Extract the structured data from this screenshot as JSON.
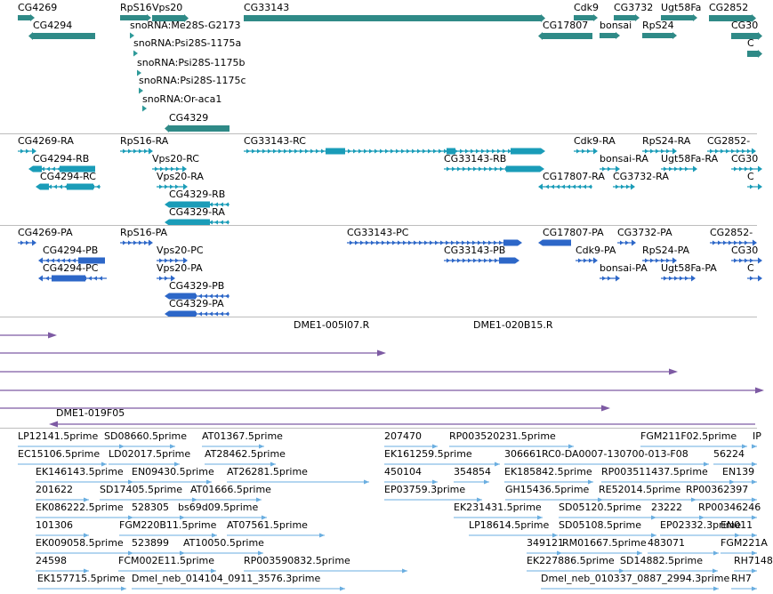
{
  "colors": {
    "gene": "#2f8a87",
    "gene_arrow": "#2e9a99",
    "mrna": "#1a9cb8",
    "transcript_alt": "#2d67c8",
    "clone": "#7d5aa3",
    "est": "#6aaee0",
    "separator": "#bdbdbd"
  },
  "tracks": {
    "genes": {
      "features": [
        {
          "label": "CG4269",
          "glyph": "arrow",
          "strand": "+"
        },
        {
          "label": "RpS16",
          "glyph": "arrow",
          "strand": "+"
        },
        {
          "label": "Vps20",
          "glyph": "bar",
          "strand": "+"
        },
        {
          "label": "CG33143",
          "glyph": "bar",
          "strand": "+"
        },
        {
          "label": "Cdk9",
          "glyph": "arrow",
          "strand": "+"
        },
        {
          "label": "CG3732",
          "glyph": "arrow",
          "strand": "+"
        },
        {
          "label": "Ugt58Fa",
          "glyph": "arrow",
          "strand": "+"
        },
        {
          "label": "CG2852",
          "glyph": "bar",
          "strand": "+"
        },
        {
          "label": "CG4294",
          "glyph": "bar",
          "strand": "-"
        },
        {
          "label": "snoRNA:Me28S-G2173",
          "glyph": "tick",
          "strand": "+"
        },
        {
          "label": "CG17807",
          "glyph": "bar",
          "strand": "-"
        },
        {
          "label": "bonsai",
          "glyph": "arrow",
          "strand": "+"
        },
        {
          "label": "RpS24",
          "glyph": "arrow",
          "strand": "+"
        },
        {
          "label": "CG30",
          "glyph": "bar",
          "strand": "+"
        },
        {
          "label": "snoRNA:Psi28S-1175a",
          "glyph": "tick",
          "strand": "+"
        },
        {
          "label": "snoRNA:Psi28S-1175b",
          "glyph": "tick",
          "strand": "+"
        },
        {
          "label": "snoRNA:Psi28S-1175c",
          "glyph": "tick",
          "strand": "+"
        },
        {
          "label": "snoRNA:Or-aca1",
          "glyph": "tick",
          "strand": "+"
        },
        {
          "label": "CG4329",
          "glyph": "bar",
          "strand": "-"
        },
        {
          "label": "C",
          "glyph": "bar",
          "strand": "+"
        }
      ]
    },
    "mrna_set1": {
      "features": [
        {
          "label": "CG4269-RA",
          "strand": "+"
        },
        {
          "label": "RpS16-RA",
          "strand": "+"
        },
        {
          "label": "CG33143-RC",
          "strand": "+"
        },
        {
          "label": "Cdk9-RA",
          "strand": "+"
        },
        {
          "label": "RpS24-RA",
          "strand": "+"
        },
        {
          "label": "CG2852-",
          "strand": "+"
        },
        {
          "label": "CG4294-RB",
          "strand": "-"
        },
        {
          "label": "Vps20-RC",
          "strand": "+"
        },
        {
          "label": "CG33143-RB",
          "strand": "+"
        },
        {
          "label": "bonsai-RA",
          "strand": "+"
        },
        {
          "label": "Ugt58Fa-RA",
          "strand": "+"
        },
        {
          "label": "CG30",
          "strand": "+"
        },
        {
          "label": "CG4294-RC",
          "strand": "-"
        },
        {
          "label": "Vps20-RA",
          "strand": "+"
        },
        {
          "label": "CG17807-RA",
          "strand": "-"
        },
        {
          "label": "CG3732-RA",
          "strand": "+"
        },
        {
          "label": "C",
          "strand": "+"
        },
        {
          "label": "CG4329-RB",
          "strand": "-"
        },
        {
          "label": "CG4329-RA",
          "strand": "-"
        }
      ]
    },
    "mrna_set2": {
      "features": [
        {
          "label": "CG4269-PA",
          "strand": "+"
        },
        {
          "label": "RpS16-PA",
          "strand": "+"
        },
        {
          "label": "CG33143-PC",
          "strand": "+"
        },
        {
          "label": "CG17807-PA",
          "strand": "-"
        },
        {
          "label": "CG3732-PA",
          "strand": "+"
        },
        {
          "label": "CG2852-",
          "strand": "+"
        },
        {
          "label": "CG4294-PB",
          "strand": "-"
        },
        {
          "label": "Vps20-PC",
          "strand": "+"
        },
        {
          "label": "CG33143-PB",
          "strand": "+"
        },
        {
          "label": "Cdk9-PA",
          "strand": "+"
        },
        {
          "label": "RpS24-PA",
          "strand": "+"
        },
        {
          "label": "CG30",
          "strand": "+"
        },
        {
          "label": "CG4294-PC",
          "strand": "-"
        },
        {
          "label": "Vps20-PA",
          "strand": "+"
        },
        {
          "label": "bonsai-PA",
          "strand": "+"
        },
        {
          "label": "Ugt58Fa-PA",
          "strand": "+"
        },
        {
          "label": "C",
          "strand": "+"
        },
        {
          "label": "CG4329-PB",
          "strand": "-"
        },
        {
          "label": "CG4329-PA",
          "strand": "-"
        }
      ]
    },
    "clones": {
      "features": [
        {
          "label": "DME1-005I07.R",
          "strand": "+"
        },
        {
          "label": "DME1-020B15.R",
          "strand": "+"
        },
        {
          "label": "",
          "strand": "+"
        },
        {
          "label": "",
          "strand": "+"
        },
        {
          "label": "",
          "strand": "+"
        },
        {
          "label": "",
          "strand": "+"
        },
        {
          "label": "DME1-019F05",
          "strand": "-"
        }
      ]
    },
    "ests": {
      "features": [
        {
          "label": "LP12141.5prime"
        },
        {
          "label": "SD08660.5prime"
        },
        {
          "label": "AT01367.5prime"
        },
        {
          "label": "207470"
        },
        {
          "label": "RP003520231.5prime"
        },
        {
          "label": "FGM211F02.5prime"
        },
        {
          "label": "IP"
        },
        {
          "label": "EC15106.5prime"
        },
        {
          "label": "LD02017.5prime"
        },
        {
          "label": "AT28462.5prime"
        },
        {
          "label": "EK161259.5prime"
        },
        {
          "label": "306661RC0-DA0007-130700-013-F08"
        },
        {
          "label": "56224"
        },
        {
          "label": "EK146143.5prime"
        },
        {
          "label": "EN09430.5prime"
        },
        {
          "label": "AT26281.5prime"
        },
        {
          "label": "450104"
        },
        {
          "label": "354854"
        },
        {
          "label": "EK185842.5prime"
        },
        {
          "label": "RP003511437.5prime"
        },
        {
          "label": "EN139"
        },
        {
          "label": "201622"
        },
        {
          "label": "SD17405.5prime"
        },
        {
          "label": "AT01666.5prime"
        },
        {
          "label": "EP03759.3prime"
        },
        {
          "label": "GH15436.5prime"
        },
        {
          "label": "RE52014.5prime"
        },
        {
          "label": "RP00362397"
        },
        {
          "label": "EK086222.5prime"
        },
        {
          "label": "528305"
        },
        {
          "label": "bs69d09.5prime"
        },
        {
          "label": "EK231431.5prime"
        },
        {
          "label": "SD05120.5prime"
        },
        {
          "label": "23222"
        },
        {
          "label": "RP00346246"
        },
        {
          "label": "101306"
        },
        {
          "label": "FGM220B11.5prime"
        },
        {
          "label": "AT07561.5prime"
        },
        {
          "label": "LP18614.5prime"
        },
        {
          "label": "SD05108.5prime"
        },
        {
          "label": "EP02332.3prime"
        },
        {
          "label": "EN011"
        },
        {
          "label": "EK009058.5prime"
        },
        {
          "label": "523899"
        },
        {
          "label": "AT10050.5prime"
        },
        {
          "label": "349121"
        },
        {
          "label": "RM01667.5prime"
        },
        {
          "label": "483071"
        },
        {
          "label": "FGM221A"
        },
        {
          "label": "24598"
        },
        {
          "label": "FCM002E11.5prime"
        },
        {
          "label": "RP003590832.5prime"
        },
        {
          "label": "EK227886.5prime"
        },
        {
          "label": "SD14882.5prime"
        },
        {
          "label": "RH7148"
        },
        {
          "label": "EK157715.5prime"
        },
        {
          "label": "Dmel_neb_014104_0911_3576.3prime"
        },
        {
          "label": "Dmel_neb_010337_0887_2994.3prime"
        },
        {
          "label": "RH7"
        }
      ]
    }
  }
}
